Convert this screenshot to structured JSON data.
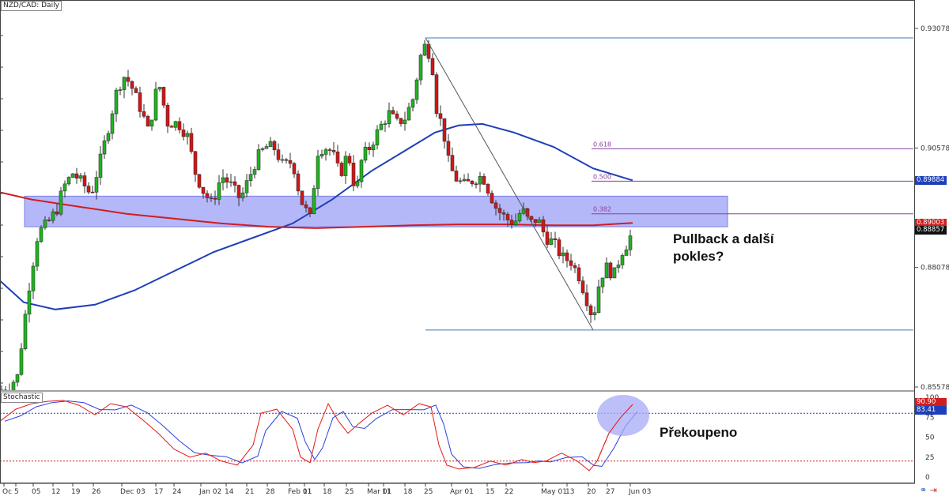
{
  "title": "NZD/CAD: Daily",
  "stochastic_label": "Stochastic",
  "chart_data": {
    "type": "candlestick",
    "symbol": "NZD/CAD",
    "timeframe": "Daily",
    "y_axis": {
      "ticks": [
        "0.93078",
        "0.90578",
        "0.88078",
        "0.85578"
      ],
      "range": [
        0.852,
        0.9335
      ]
    },
    "x_axis": {
      "ticks": [
        "Oc",
        "5",
        "05",
        "12",
        "19",
        "26",
        "Dec 03",
        "17",
        "24",
        "Jan 02",
        "14",
        "21",
        "28",
        "Feb 01",
        "11",
        "18",
        "25",
        "Mar 01",
        "11",
        "18",
        "25",
        "Apr 01",
        "15",
        "22",
        "May 01",
        "13",
        "20",
        "27",
        "Jun 03"
      ]
    },
    "price_tags": [
      {
        "label": "0.89884",
        "color": "#1e3fb8"
      },
      {
        "label": "0.89003",
        "color": "#d11d1d"
      },
      {
        "label": "0.88857",
        "color": "#111111"
      }
    ],
    "fibonacci": [
      {
        "label": "0.618",
        "price": 0.9056
      },
      {
        "label": "0.500",
        "price": 0.89884
      },
      {
        "label": "0.382",
        "price": 0.892
      }
    ],
    "levels": [
      {
        "name": "high",
        "price": 0.9288
      },
      {
        "name": "low",
        "price": 0.8677
      }
    ],
    "zone": {
      "top": 0.8957,
      "bottom": 0.8893
    },
    "stochastic": {
      "y_ticks": [
        "100",
        "75",
        "50",
        "25",
        "0"
      ],
      "levels": [
        80,
        20
      ],
      "value_tags": [
        {
          "label": "90.90",
          "color": "#d11d1d"
        },
        {
          "label": "83.41",
          "color": "#1e3fb8"
        }
      ]
    }
  },
  "annotations": {
    "pullback": [
      "Pullback a další",
      "pokles?"
    ],
    "overbought": "Překoupeno"
  }
}
